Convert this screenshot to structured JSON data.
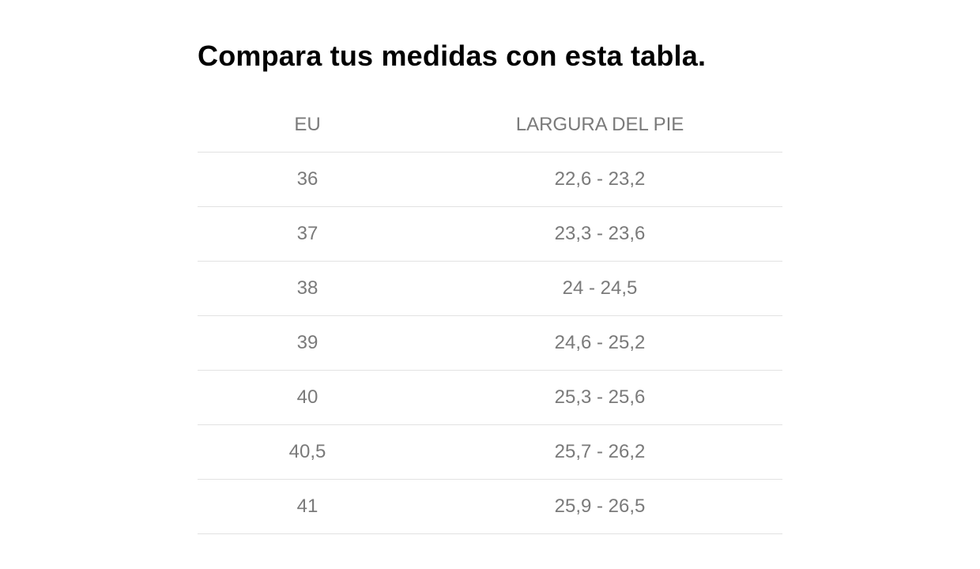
{
  "page": {
    "title": "Compara tus medidas con esta tabla."
  },
  "table": {
    "headers": {
      "eu": "EU",
      "length": "LARGURA DEL PIE"
    },
    "rows": [
      {
        "eu": "36",
        "length": "22,6 - 23,2"
      },
      {
        "eu": "37",
        "length": "23,3 - 23,6"
      },
      {
        "eu": "38",
        "length": "24 - 24,5"
      },
      {
        "eu": "39",
        "length": "24,6 - 25,2"
      },
      {
        "eu": "40",
        "length": "25,3 - 25,6"
      },
      {
        "eu": "40,5",
        "length": "25,7 - 26,2"
      },
      {
        "eu": "41",
        "length": "25,9 - 26,5"
      }
    ]
  },
  "colors": {
    "title": "#000000",
    "text": "#7a7a7a",
    "divider": "#e2e2e2",
    "background": "#ffffff"
  }
}
